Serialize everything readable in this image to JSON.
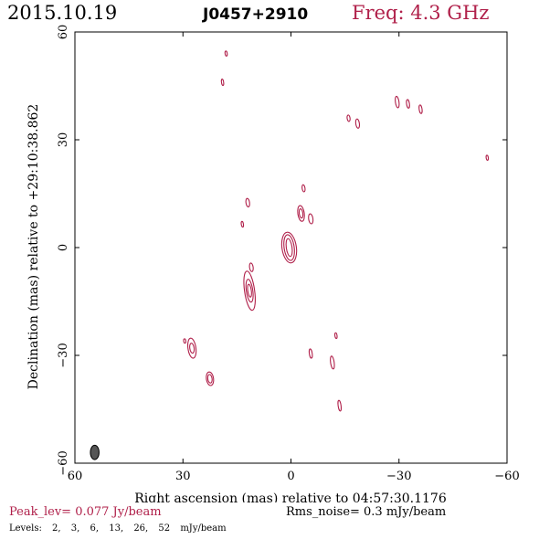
{
  "header": {
    "date": "2015.10.19",
    "source": "J0457+2910",
    "freq": "Freq: 4.3 GHz"
  },
  "footer": {
    "peak": "Peak_lev=  0.077 Jy/beam",
    "rms": "Rms_noise=  0.3 mJy/beam",
    "levels_label": "Levels:",
    "levels": [
      "2,",
      "3,",
      "6,",
      "13,",
      "26,",
      "52",
      "mJy/beam"
    ]
  },
  "colors": {
    "contour": "#b0204a",
    "axis": "#000000",
    "beam": "#555555"
  },
  "chart_data": {
    "type": "contour",
    "xlabel": "Right ascension (mas) relative to 04:57:30.1176",
    "ylabel": "Declination (mas) relative to +29:10:38.862",
    "xlim": [
      60,
      -60
    ],
    "ylim": [
      -60,
      60
    ],
    "xticks": [
      60,
      30,
      0,
      -30,
      -60
    ],
    "xtick_labels": [
      "60",
      "30",
      "0",
      "−30",
      "−60"
    ],
    "yticks": [
      -60,
      -30,
      0,
      30,
      60
    ],
    "ytick_labels": [
      "−60",
      "−30",
      "0",
      "30",
      "60"
    ],
    "beam": {
      "x": 54.5,
      "y": -57,
      "major": 2.0,
      "minor": 1.2
    },
    "components": [
      {
        "x": 0.5,
        "y": 0,
        "a": [
          0.8,
          1.4,
          2.0
        ],
        "b": [
          2.5,
          3.6,
          4.3
        ]
      },
      {
        "x": -2.8,
        "y": 9.5,
        "a": [
          0.5,
          0.9
        ],
        "b": [
          1.3,
          2.2
        ]
      },
      {
        "x": -5.5,
        "y": 8.0,
        "a": [
          0.6
        ],
        "b": [
          1.4
        ]
      },
      {
        "x": -3.5,
        "y": 16.5,
        "a": [
          0.4
        ],
        "b": [
          1.0
        ]
      },
      {
        "x": 11.5,
        "y": -12,
        "a": [
          0.5,
          0.9,
          1.4
        ],
        "b": [
          1.8,
          3.2,
          5.5
        ]
      },
      {
        "x": 11,
        "y": -5.5,
        "a": [
          0.5
        ],
        "b": [
          1.2
        ]
      },
      {
        "x": 12,
        "y": 12.5,
        "a": [
          0.5
        ],
        "b": [
          1.2
        ]
      },
      {
        "x": 13.5,
        "y": 6.5,
        "a": [
          0.3
        ],
        "b": [
          0.8
        ]
      },
      {
        "x": 19,
        "y": 46,
        "a": [
          0.3
        ],
        "b": [
          0.9
        ]
      },
      {
        "x": 18,
        "y": 54,
        "a": [
          0.3
        ],
        "b": [
          0.7
        ]
      },
      {
        "x": -16,
        "y": 36,
        "a": [
          0.4
        ],
        "b": [
          0.9
        ]
      },
      {
        "x": -18.5,
        "y": 34.5,
        "a": [
          0.5
        ],
        "b": [
          1.3
        ]
      },
      {
        "x": -29.5,
        "y": 40.5,
        "a": [
          0.5
        ],
        "b": [
          1.6
        ]
      },
      {
        "x": -32.5,
        "y": 40,
        "a": [
          0.4
        ],
        "b": [
          1.2
        ]
      },
      {
        "x": -36,
        "y": 38.5,
        "a": [
          0.4
        ],
        "b": [
          1.2
        ]
      },
      {
        "x": -54.5,
        "y": 25,
        "a": [
          0.3
        ],
        "b": [
          0.7
        ]
      },
      {
        "x": 27.5,
        "y": -28,
        "a": [
          0.6,
          1.1
        ],
        "b": [
          1.4,
          2.8
        ]
      },
      {
        "x": 29.5,
        "y": -26,
        "a": [
          0.3
        ],
        "b": [
          0.6
        ]
      },
      {
        "x": 22.5,
        "y": -36.5,
        "a": [
          0.6,
          1.0
        ],
        "b": [
          1.2,
          1.9
        ]
      },
      {
        "x": -5.5,
        "y": -29.5,
        "a": [
          0.4
        ],
        "b": [
          1.3
        ]
      },
      {
        "x": -11.5,
        "y": -32,
        "a": [
          0.5
        ],
        "b": [
          1.8
        ]
      },
      {
        "x": -12.5,
        "y": -24.5,
        "a": [
          0.3
        ],
        "b": [
          0.8
        ]
      },
      {
        "x": -13.5,
        "y": -44,
        "a": [
          0.4
        ],
        "b": [
          1.5
        ]
      }
    ]
  }
}
